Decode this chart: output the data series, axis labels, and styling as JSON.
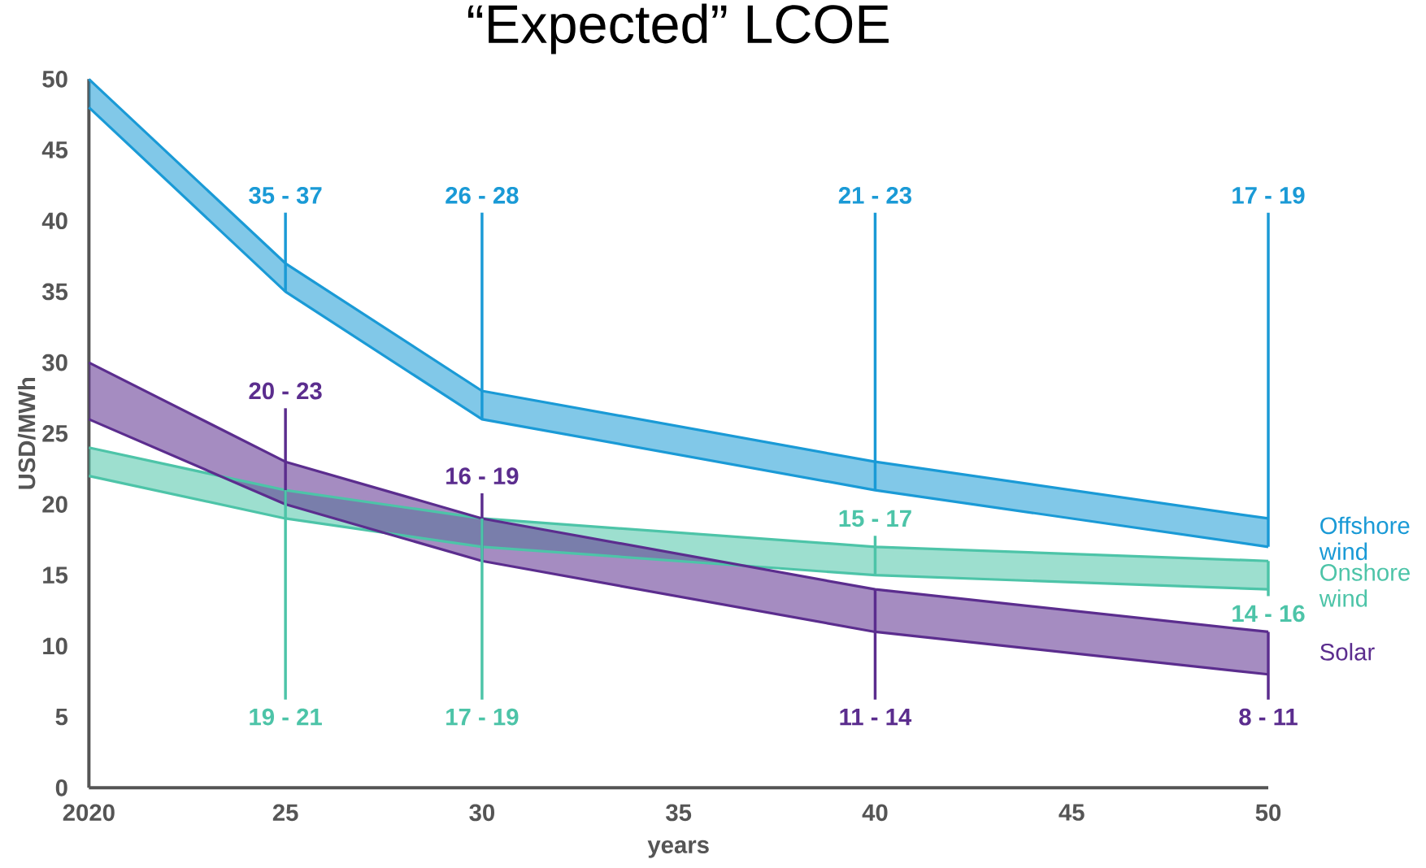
{
  "chart_data": {
    "type": "line",
    "title": "“Expected” LCOE",
    "xlabel": "years",
    "ylabel": "USD/MWh",
    "x": [
      2020,
      2025,
      2030,
      2040,
      2050
    ],
    "xlim": [
      2020,
      2050
    ],
    "xticks": [
      2020,
      {
        "value": 2025,
        "label": "25"
      },
      {
        "value": 2030,
        "label": "30"
      },
      {
        "value": 2035,
        "label": "35"
      },
      {
        "value": 2040,
        "label": "40"
      },
      {
        "value": 2045,
        "label": "45"
      },
      {
        "value": 2050,
        "label": "50"
      }
    ],
    "ylim": [
      0,
      50
    ],
    "yticks": [
      0,
      5,
      10,
      15,
      20,
      25,
      30,
      35,
      40,
      45,
      50
    ],
    "grid": false,
    "legend": "right",
    "marker": "none",
    "line_style": "solid",
    "series": [
      {
        "name": "Offshore wind",
        "color": "#1a9ad6",
        "values": [
          50,
          37,
          28,
          23,
          19
        ],
        "lower": [
          48,
          35,
          26,
          21,
          17
        ],
        "upper": [
          50,
          37,
          28,
          23,
          19
        ]
      },
      {
        "color": "#1a9ad6",
        "values": [
          48,
          35,
          26,
          21,
          17
        ]
      },
      {
        "name": "Onshore wind",
        "color": "#4dc4a8",
        "values": [
          24,
          21,
          19,
          17,
          16
        ],
        "lower": [
          22,
          19,
          17,
          15,
          14
        ],
        "upper": [
          24,
          21,
          19,
          17,
          16
        ]
      },
      {
        "color": "#4dc4a8",
        "values": [
          22,
          19,
          17,
          15,
          14
        ]
      },
      {
        "name": "Solar",
        "color": "#5b2d8e",
        "values": [
          30,
          23,
          19,
          14,
          11
        ],
        "lower": [
          26,
          20,
          16,
          11,
          8
        ],
        "upper": [
          30,
          23,
          19,
          14,
          11
        ]
      },
      {
        "color": "#5b2d8e",
        "values": [
          26,
          20,
          16,
          11,
          8
        ]
      }
    ],
    "annotations": [
      {
        "text": "35 - 37",
        "x": 2025,
        "y": 35
      },
      {
        "text": "26 - 28",
        "x": 2030,
        "y": 26
      },
      {
        "text": "21 - 23",
        "x": 2040,
        "y": 21
      },
      {
        "text": "17 - 19",
        "x": 2050,
        "y": 17
      },
      {
        "text": "20 - 23",
        "x": 2025,
        "y": 20
      },
      {
        "text": "16 - 19",
        "x": 2030,
        "y": 16
      },
      {
        "text": "15 - 17",
        "x": 2040,
        "y": 15
      },
      {
        "text": "14 - 16",
        "x": 2050,
        "y": 16
      },
      {
        "text": "19 - 21",
        "x": 2025,
        "y": 21
      },
      {
        "text": "17 - 19",
        "x": 2030,
        "y": 19
      },
      {
        "text": "11 - 14",
        "x": 2040,
        "y": 14
      },
      {
        "text": "8 - 11",
        "x": 2050,
        "y": 11
      }
    ]
  }
}
